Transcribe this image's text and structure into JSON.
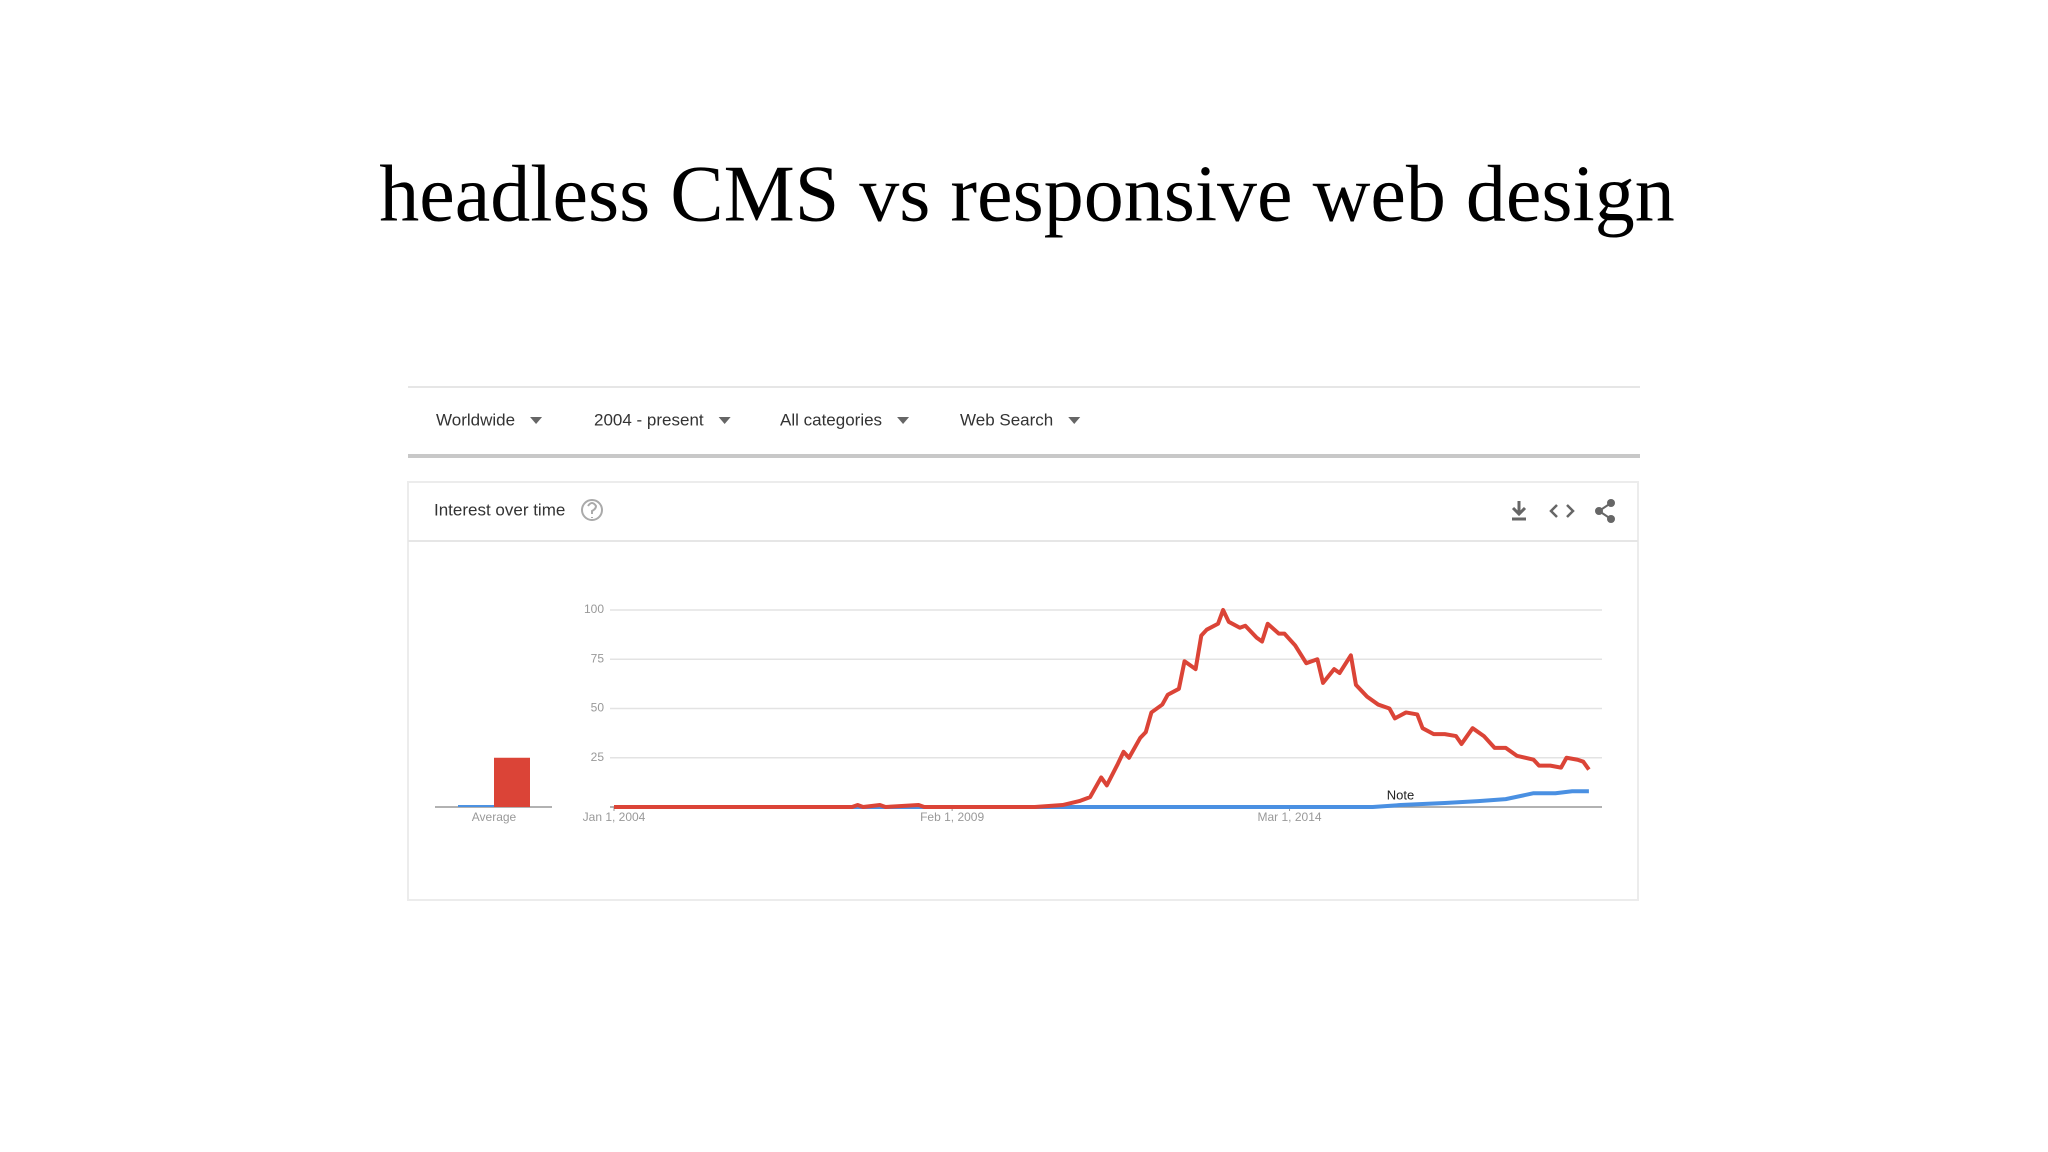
{
  "title": "headless CMS vs responsive web design",
  "filters": [
    "Worldwide",
    "2004 - present",
    "All categories",
    "Web Search"
  ],
  "card": {
    "title": "Interest over time"
  },
  "chart_data": {
    "type": "line",
    "xlim": [
      "2004-01-01",
      "2018-11-01"
    ],
    "xticks": [
      {
        "value": "2004-01-01",
        "label": "Jan 1, 2004"
      },
      {
        "value": "2009-02-01",
        "label": "Feb 1, 2009"
      },
      {
        "value": "2014-03-01",
        "label": "Mar 1, 2014"
      }
    ],
    "ylim": [
      0,
      100
    ],
    "yticks": [
      25,
      50,
      75,
      100
    ],
    "grid": true,
    "average": {
      "label": "Average",
      "values": [
        1,
        25
      ]
    },
    "annotations": [
      {
        "text": "Note",
        "x": "2015-11-01"
      }
    ],
    "series": [
      {
        "color": "#4a90e2",
        "x": [
          "2004-01-01",
          "2015-06-01",
          "2015-11-01",
          "2016-07-01",
          "2017-01-01",
          "2017-06-01",
          "2017-11-01",
          "2018-03-01",
          "2018-06-01",
          "2018-09-01"
        ],
        "values": [
          0,
          0,
          1,
          2,
          3,
          4,
          7,
          7,
          8,
          8
        ]
      },
      {
        "color": "#db4437",
        "x": [
          "2004-01-01",
          "2007-08-01",
          "2007-09-01",
          "2007-10-01",
          "2008-01-01",
          "2008-02-01",
          "2008-08-01",
          "2008-09-01",
          "2010-05-01",
          "2010-10-01",
          "2011-01-01",
          "2011-03-01",
          "2011-05-01",
          "2011-06-01",
          "2011-08-01",
          "2011-09-01",
          "2011-10-01",
          "2011-12-01",
          "2012-01-01",
          "2012-02-01",
          "2012-04-01",
          "2012-05-01",
          "2012-07-01",
          "2012-08-01",
          "2012-10-01",
          "2012-11-01",
          "2012-12-01",
          "2013-02-01",
          "2013-03-01",
          "2013-04-01",
          "2013-06-01",
          "2013-07-01",
          "2013-09-01",
          "2013-10-01",
          "2013-11-01",
          "2014-01-01",
          "2014-02-01",
          "2014-04-01",
          "2014-06-01",
          "2014-08-01",
          "2014-09-01",
          "2014-11-01",
          "2014-12-01",
          "2015-02-01",
          "2015-03-01",
          "2015-05-01",
          "2015-07-01",
          "2015-09-01",
          "2015-10-01",
          "2015-12-01",
          "2016-02-01",
          "2016-03-01",
          "2016-05-01",
          "2016-07-01",
          "2016-09-01",
          "2016-10-01",
          "2016-12-01",
          "2017-02-01",
          "2017-04-01",
          "2017-06-01",
          "2017-08-01",
          "2017-11-01",
          "2017-12-01",
          "2018-02-01",
          "2018-04-01",
          "2018-05-01",
          "2018-07-01",
          "2018-08-01",
          "2018-09-01"
        ],
        "values": [
          0,
          0,
          1,
          0,
          1,
          0,
          1,
          0,
          0,
          1,
          3,
          5,
          15,
          11,
          22,
          28,
          25,
          35,
          38,
          48,
          52,
          57,
          60,
          74,
          70,
          87,
          90,
          93,
          100,
          94,
          91,
          92,
          86,
          84,
          93,
          88,
          88,
          82,
          73,
          75,
          63,
          70,
          68,
          77,
          62,
          56,
          52,
          50,
          45,
          48,
          47,
          40,
          37,
          37,
          36,
          32,
          40,
          36,
          30,
          30,
          26,
          24,
          21,
          21,
          20,
          25,
          24,
          23,
          19
        ]
      }
    ]
  }
}
